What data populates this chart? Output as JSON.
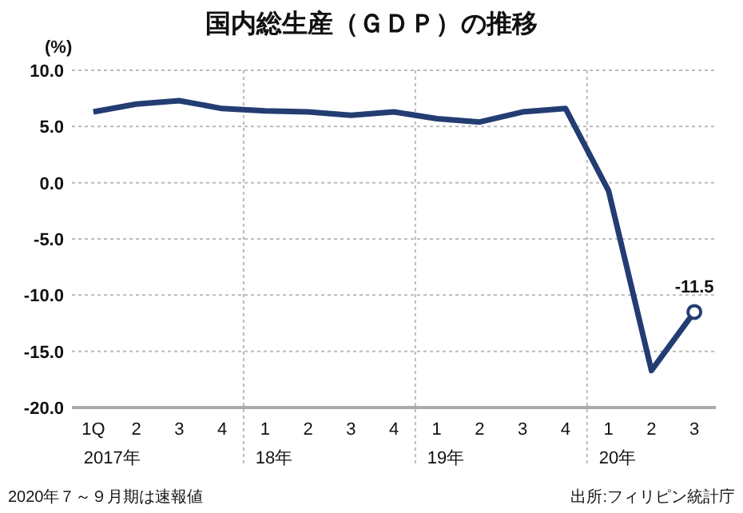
{
  "chart_data": {
    "type": "line",
    "title": "国内総生産（ＧＤＰ）の推移",
    "ylabel": "(%)",
    "categories": [
      "1Q\n2017年",
      "2",
      "3",
      "4",
      "1\n18年",
      "2",
      "3",
      "4",
      "1\n19年",
      "2",
      "3",
      "4",
      "1\n20年",
      "2",
      "3"
    ],
    "series": [
      {
        "color": "#233d73",
        "values": [
          6.3,
          7.0,
          7.3,
          6.6,
          6.4,
          6.3,
          6.0,
          6.3,
          5.7,
          5.4,
          6.3,
          6.6,
          -0.7,
          -16.7,
          -11.5
        ],
        "value_labels": [
          null,
          null,
          null,
          null,
          null,
          null,
          null,
          null,
          null,
          null,
          null,
          null,
          null,
          null,
          "-11.5"
        ]
      }
    ],
    "ylim": [
      -20,
      10
    ],
    "yticks": [
      {
        "value": -20,
        "label": "-20.0"
      },
      {
        "value": -15,
        "label": "-15.0"
      },
      {
        "value": -10,
        "label": "-10.0"
      },
      {
        "value": -5,
        "label": "-5.0"
      },
      {
        "value": 0,
        "label": "0.0"
      },
      {
        "value": 5,
        "label": "5.0"
      },
      {
        "value": 10,
        "label": "10.0"
      }
    ],
    "grid": true,
    "annotations": [
      "2020年７～９月期は速報値",
      "出所:フィリピン統計庁"
    ]
  }
}
